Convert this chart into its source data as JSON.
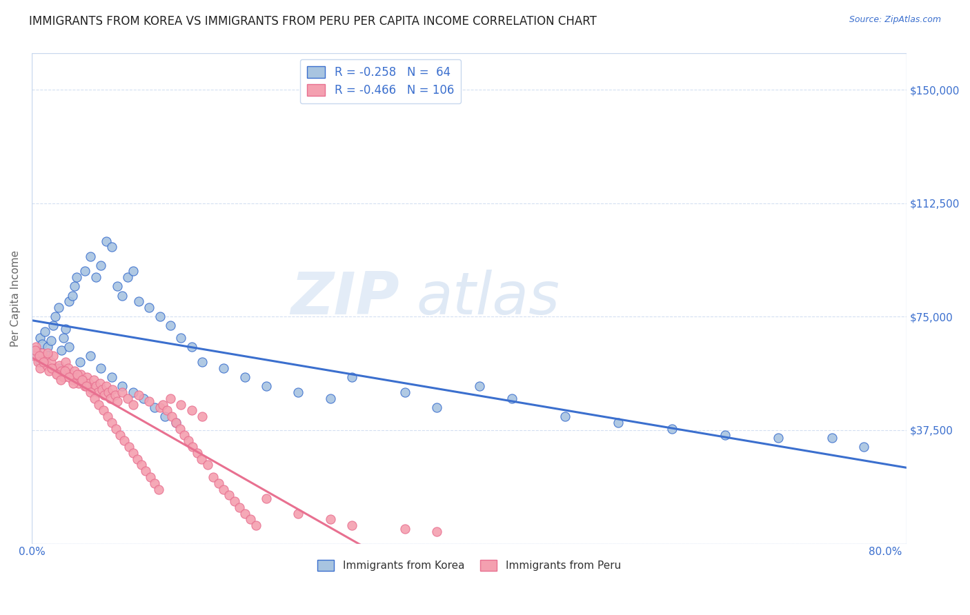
{
  "title": "IMMIGRANTS FROM KOREA VS IMMIGRANTS FROM PERU PER CAPITA INCOME CORRELATION CHART",
  "source": "Source: ZipAtlas.com",
  "ylabel": "Per Capita Income",
  "yticks": [
    0,
    37500,
    75000,
    112500,
    150000
  ],
  "ytick_labels": [
    "",
    "$37,500",
    "$75,000",
    "$112,500",
    "$150,000"
  ],
  "ylim": [
    0,
    162000
  ],
  "xlim": [
    0.0,
    0.82
  ],
  "korea_R": -0.258,
  "korea_N": 64,
  "peru_R": -0.466,
  "peru_N": 106,
  "korea_color": "#a8c4e0",
  "peru_color": "#f4a0b0",
  "korea_line_color": "#3b6fce",
  "peru_line_color": "#e87090",
  "background_color": "#ffffff",
  "watermark_zip": "ZIP",
  "watermark_atlas": "atlas",
  "title_fontsize": 12,
  "axis_label_color": "#3b6fce",
  "korea_scatter_x": [
    0.005,
    0.008,
    0.01,
    0.012,
    0.015,
    0.018,
    0.02,
    0.022,
    0.025,
    0.028,
    0.03,
    0.032,
    0.035,
    0.038,
    0.04,
    0.042,
    0.05,
    0.055,
    0.06,
    0.065,
    0.07,
    0.075,
    0.08,
    0.085,
    0.09,
    0.095,
    0.1,
    0.11,
    0.12,
    0.13,
    0.14,
    0.15,
    0.16,
    0.18,
    0.2,
    0.22,
    0.25,
    0.28,
    0.3,
    0.35,
    0.38,
    0.42,
    0.45,
    0.5,
    0.55,
    0.6,
    0.65,
    0.7,
    0.75,
    0.78,
    0.008,
    0.015,
    0.025,
    0.035,
    0.045,
    0.055,
    0.065,
    0.075,
    0.085,
    0.095,
    0.105,
    0.115,
    0.125,
    0.135
  ],
  "korea_scatter_y": [
    63000,
    68000,
    66000,
    70000,
    65000,
    67000,
    72000,
    75000,
    78000,
    64000,
    68000,
    71000,
    80000,
    82000,
    85000,
    88000,
    90000,
    95000,
    88000,
    92000,
    100000,
    98000,
    85000,
    82000,
    88000,
    90000,
    80000,
    78000,
    75000,
    72000,
    68000,
    65000,
    60000,
    58000,
    55000,
    52000,
    50000,
    48000,
    55000,
    50000,
    45000,
    52000,
    48000,
    42000,
    40000,
    38000,
    36000,
    35000,
    35000,
    32000,
    60000,
    62000,
    58000,
    65000,
    60000,
    62000,
    58000,
    55000,
    52000,
    50000,
    48000,
    45000,
    42000,
    40000
  ],
  "peru_scatter_x": [
    0.002,
    0.004,
    0.006,
    0.008,
    0.01,
    0.012,
    0.014,
    0.016,
    0.018,
    0.02,
    0.022,
    0.024,
    0.026,
    0.028,
    0.03,
    0.032,
    0.034,
    0.036,
    0.038,
    0.04,
    0.042,
    0.044,
    0.046,
    0.048,
    0.05,
    0.052,
    0.054,
    0.056,
    0.058,
    0.06,
    0.062,
    0.064,
    0.066,
    0.068,
    0.07,
    0.072,
    0.074,
    0.076,
    0.078,
    0.08,
    0.085,
    0.09,
    0.095,
    0.1,
    0.11,
    0.12,
    0.13,
    0.14,
    0.15,
    0.16,
    0.003,
    0.007,
    0.011,
    0.015,
    0.019,
    0.023,
    0.027,
    0.031,
    0.035,
    0.039,
    0.043,
    0.047,
    0.051,
    0.055,
    0.059,
    0.063,
    0.067,
    0.071,
    0.075,
    0.079,
    0.083,
    0.087,
    0.091,
    0.095,
    0.099,
    0.103,
    0.107,
    0.111,
    0.115,
    0.119,
    0.123,
    0.127,
    0.131,
    0.135,
    0.139,
    0.143,
    0.147,
    0.151,
    0.155,
    0.159,
    0.165,
    0.17,
    0.175,
    0.18,
    0.185,
    0.19,
    0.195,
    0.2,
    0.205,
    0.21,
    0.22,
    0.25,
    0.28,
    0.3,
    0.35,
    0.38
  ],
  "peru_scatter_y": [
    62000,
    65000,
    60000,
    58000,
    63000,
    61000,
    59000,
    57000,
    60000,
    62000,
    58000,
    56000,
    59000,
    57000,
    55000,
    60000,
    58000,
    56000,
    54000,
    57000,
    55000,
    53000,
    56000,
    54000,
    52000,
    55000,
    53000,
    51000,
    54000,
    52000,
    50000,
    53000,
    51000,
    49000,
    52000,
    50000,
    48000,
    51000,
    49000,
    47000,
    50000,
    48000,
    46000,
    49000,
    47000,
    45000,
    48000,
    46000,
    44000,
    42000,
    64000,
    62000,
    60000,
    63000,
    58000,
    56000,
    54000,
    57000,
    55000,
    53000,
    56000,
    54000,
    52000,
    50000,
    48000,
    46000,
    44000,
    42000,
    40000,
    38000,
    36000,
    34000,
    32000,
    30000,
    28000,
    26000,
    24000,
    22000,
    20000,
    18000,
    46000,
    44000,
    42000,
    40000,
    38000,
    36000,
    34000,
    32000,
    30000,
    28000,
    26000,
    22000,
    20000,
    18000,
    16000,
    14000,
    12000,
    10000,
    8000,
    6000,
    15000,
    10000,
    8000,
    6000,
    5000,
    4000
  ]
}
